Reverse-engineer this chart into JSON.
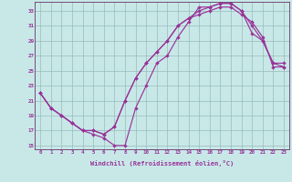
{
  "bg_color": "#c8e8e8",
  "line_color": "#993399",
  "grid_color": "#99bbbb",
  "spine_color": "#663366",
  "xlim_min": -0.5,
  "xlim_max": 23.5,
  "ylim_min": 14.5,
  "ylim_max": 34.2,
  "xticks": [
    0,
    1,
    2,
    3,
    4,
    5,
    6,
    7,
    8,
    9,
    10,
    11,
    12,
    13,
    14,
    15,
    16,
    17,
    18,
    19,
    20,
    21,
    22,
    23
  ],
  "yticks": [
    15,
    17,
    19,
    21,
    23,
    25,
    27,
    29,
    31,
    33
  ],
  "xlabel": "Windchill (Refroidissement éolien,°C)",
  "curve1_x": [
    0,
    1,
    2,
    3,
    4,
    5,
    6,
    7,
    8,
    9,
    10,
    11,
    12,
    13,
    14,
    15,
    16,
    17,
    18,
    19,
    20,
    21,
    22,
    23
  ],
  "curve1_y": [
    22,
    20,
    19,
    18,
    17,
    16.5,
    16,
    15,
    15,
    20,
    23,
    26,
    27,
    29.5,
    31.5,
    33.5,
    33.5,
    34,
    34,
    33,
    30,
    29,
    26,
    26
  ],
  "curve2_x": [
    0,
    1,
    2,
    3,
    4,
    5,
    6,
    7,
    8,
    9,
    10,
    11,
    12,
    13,
    14,
    15,
    16,
    17,
    18,
    19,
    20,
    21,
    22,
    23
  ],
  "curve2_y": [
    22,
    20,
    19,
    18,
    17,
    17,
    16.5,
    17.5,
    21,
    24,
    26,
    27.5,
    29,
    31,
    32,
    33,
    33.5,
    34,
    34,
    33,
    31,
    29,
    26,
    25.5
  ],
  "curve3_x": [
    0,
    1,
    2,
    3,
    4,
    5,
    6,
    7,
    8,
    9,
    10,
    11,
    12,
    13,
    14,
    15,
    16,
    17,
    18,
    19,
    20,
    21,
    22,
    23
  ],
  "curve3_y": [
    22,
    20,
    19,
    18,
    17,
    17,
    16.5,
    17.5,
    21,
    24,
    26,
    27.5,
    29,
    31,
    32,
    32.5,
    33,
    33.5,
    33.5,
    32.5,
    31.5,
    29.5,
    25.5,
    25.5
  ]
}
